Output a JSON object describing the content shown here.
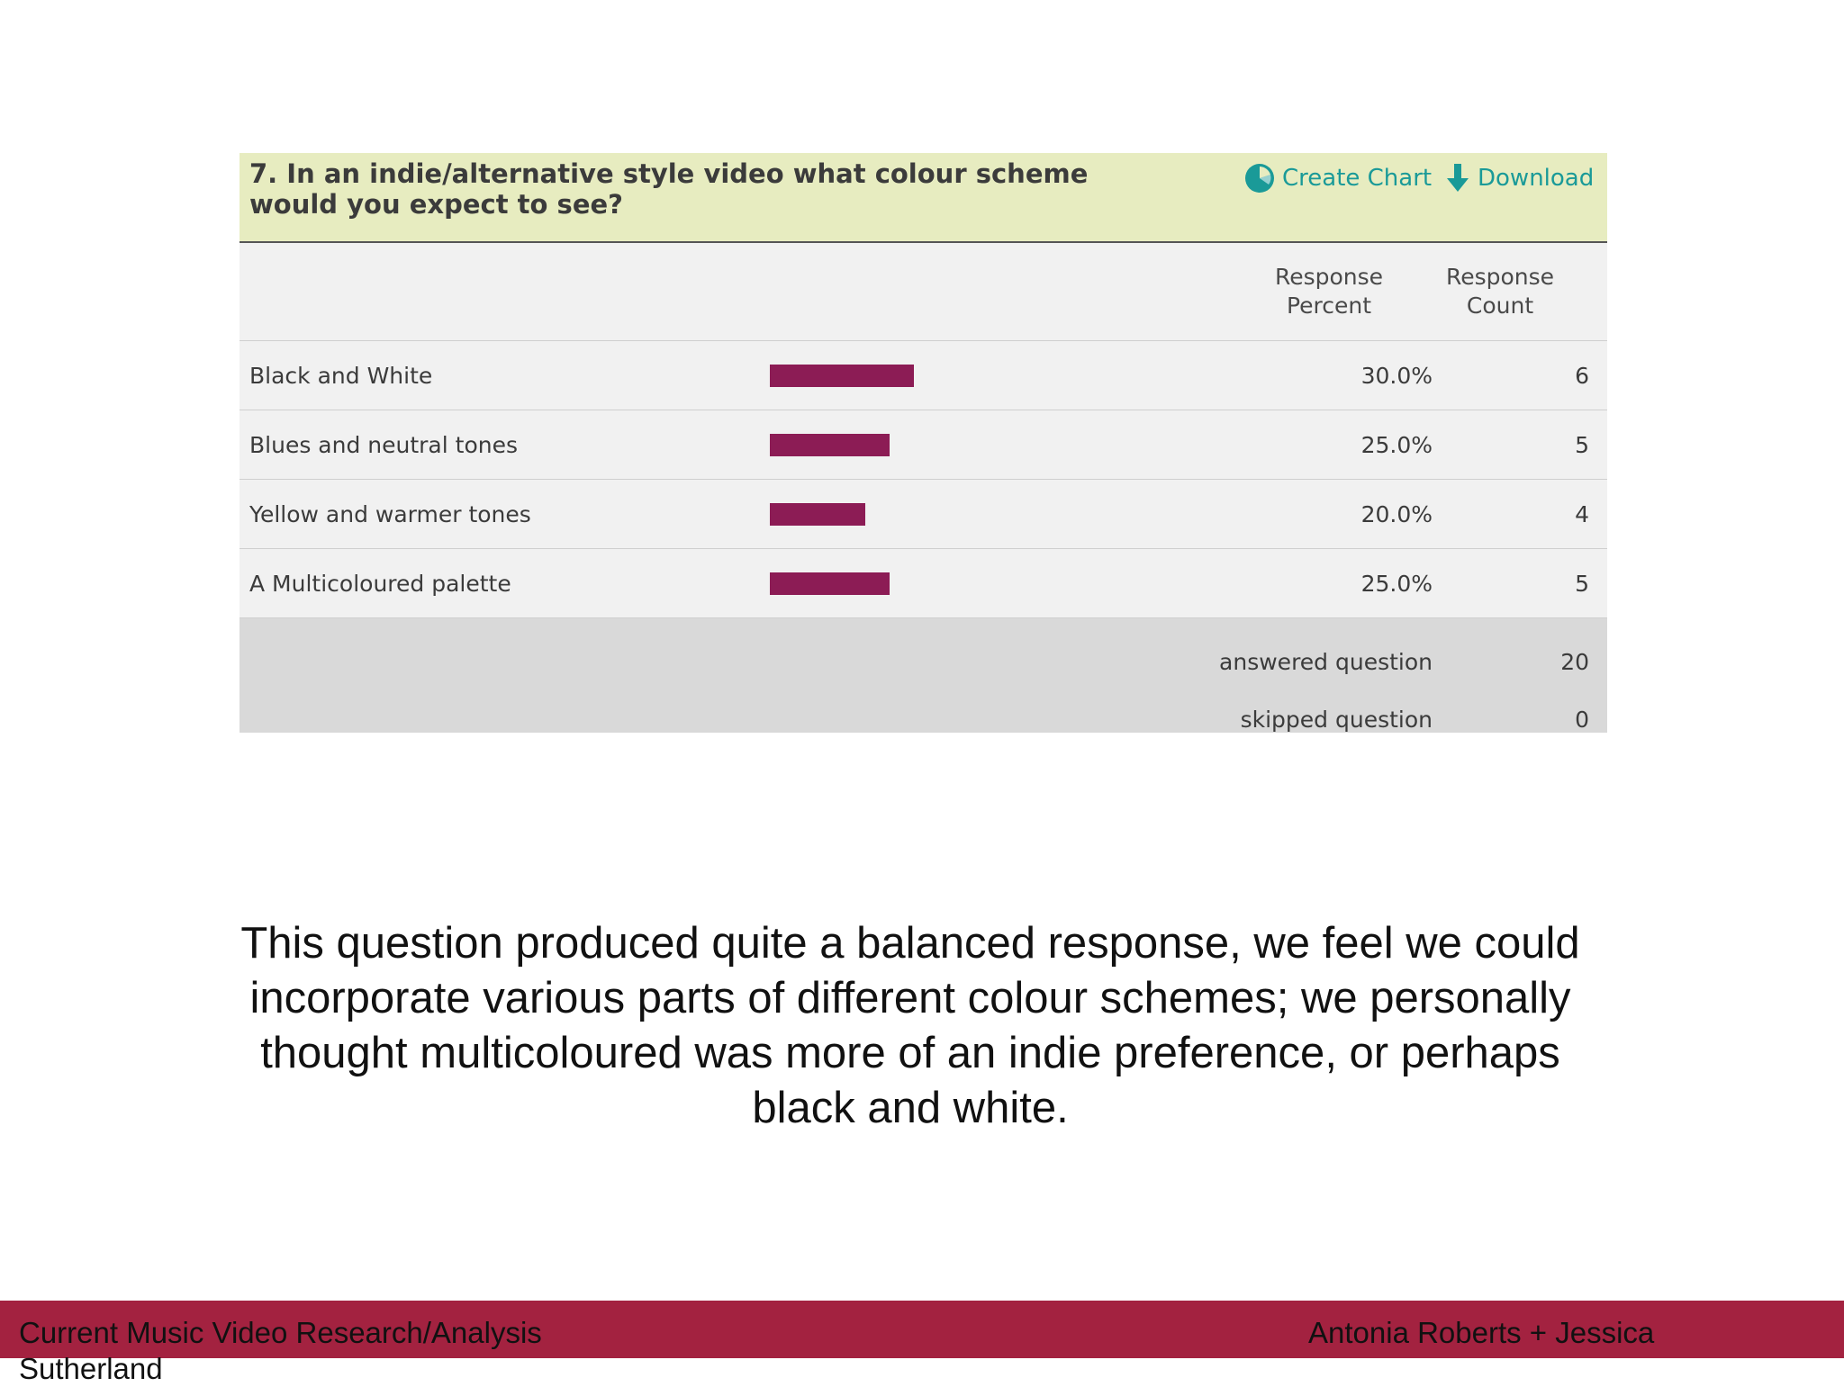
{
  "survey": {
    "question": "7. In an indie/alternative style video what colour scheme would you expect to see?",
    "create_chart_label": "Create Chart",
    "download_label": "Download",
    "col_percent_line1": "Response",
    "col_percent_line2": "Percent",
    "col_count_line1": "Response",
    "col_count_line2": "Count",
    "rows": [
      {
        "label": "Black and White",
        "percent": "30.0%",
        "count": "6",
        "fraction": 0.3
      },
      {
        "label": "Blues and neutral tones",
        "percent": "25.0%",
        "count": "5",
        "fraction": 0.25
      },
      {
        "label": "Yellow and warmer tones",
        "percent": "20.0%",
        "count": "4",
        "fraction": 0.2
      },
      {
        "label": "A Multicoloured palette",
        "percent": "25.0%",
        "count": "5",
        "fraction": 0.25
      }
    ],
    "answered_label": "answered question",
    "answered_value": "20",
    "skipped_label": "skipped question",
    "skipped_value": "0",
    "bar_color": "#8c1c55",
    "link_color": "#1a9a98"
  },
  "caption": "This question produced quite a balanced response, we feel we could incorporate various parts of different colour schemes; we personally thought multicoloured was more of an indie preference, or perhaps black and white.",
  "footer": {
    "left": "Current Music Video Research/Analysis",
    "left_wrap": "Sutherland",
    "right": "Antonia Roberts + Jessica",
    "color": "#a32240"
  }
}
